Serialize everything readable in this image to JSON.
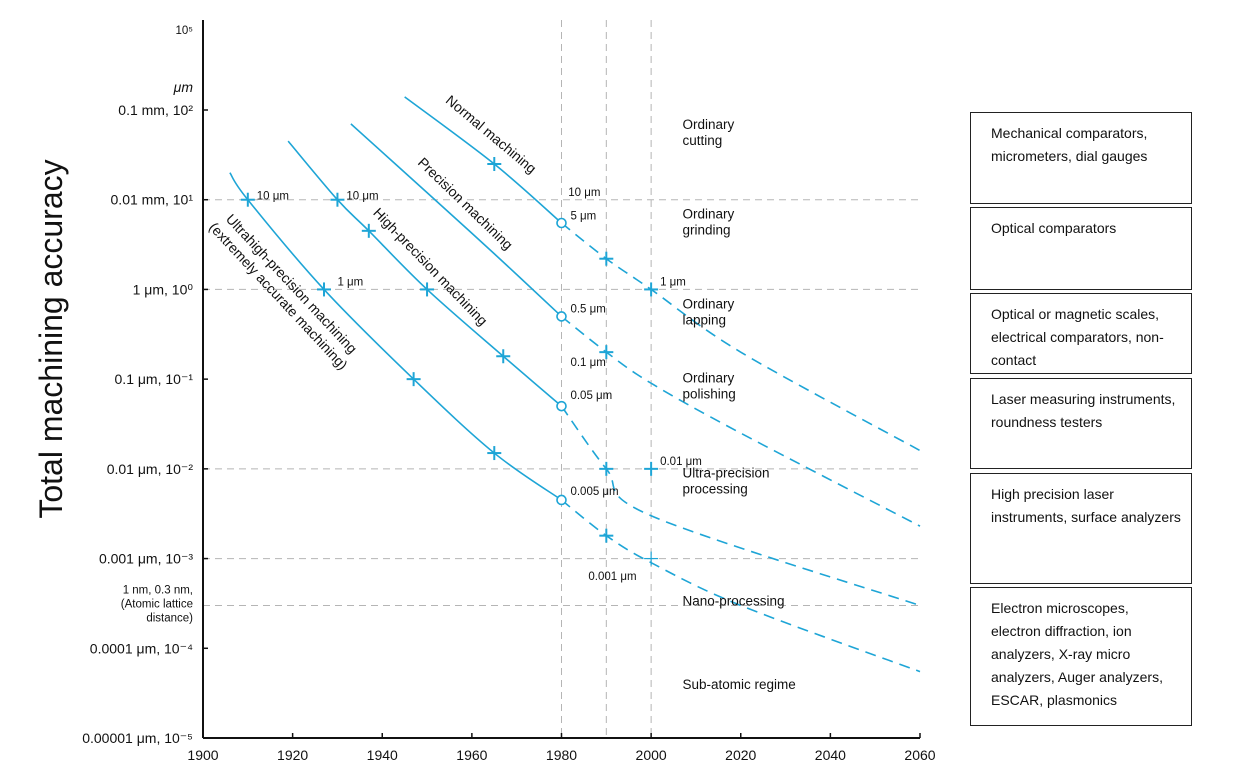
{
  "chart_data": {
    "type": "line",
    "ylabel": "Total machining accuracy",
    "x_axis": {
      "range": [
        1900,
        2060
      ],
      "ticks": [
        1900,
        1920,
        1940,
        1960,
        1980,
        2000,
        2020,
        2040,
        2060
      ]
    },
    "y_axis": {
      "scale": "log",
      "unit_header": "μm",
      "range": [
        1e-05,
        100
      ],
      "top_label": "10⁵",
      "ticks": [
        {
          "value": 100,
          "label": "0.1 mm, 10²"
        },
        {
          "value": 10,
          "label": "0.01 mm, 10¹"
        },
        {
          "value": 1,
          "label": "1 μm, 10⁰"
        },
        {
          "value": 0.1,
          "label": "0.1 μm, 10⁻¹"
        },
        {
          "value": 0.01,
          "label": "0.01 μm, 10⁻²"
        },
        {
          "value": 0.001,
          "label": "0.001 μm, 10⁻³"
        },
        {
          "value": 0.0001,
          "label": "0.0001 μm, 10⁻⁴"
        },
        {
          "value": 1e-05,
          "label": "0.00001 μm, 10⁻⁵"
        }
      ],
      "extra_label": {
        "value": 0.0003,
        "lines": [
          "1 nm, 0.3 nm,",
          "(Atomic lattice",
          "distance)"
        ]
      }
    },
    "gridlines": {
      "horizontal": [
        10,
        1,
        0.01,
        0.001,
        0.0003
      ],
      "vertical": [
        1980,
        1990,
        2000
      ]
    },
    "series": [
      {
        "name": "Normal machining",
        "points": [
          [
            1945,
            140
          ],
          [
            1965,
            25
          ],
          [
            1980,
            5.5
          ],
          [
            1990,
            2.2
          ],
          [
            2000,
            1
          ],
          [
            2020,
            0.2
          ],
          [
            2060,
            0.016
          ]
        ],
        "solid_until": 1980,
        "plus_markers": [
          [
            1965,
            25
          ],
          [
            1990,
            2.2
          ],
          [
            2000,
            1
          ]
        ],
        "circle_marker": [
          1980,
          5.5
        ]
      },
      {
        "name": "Precision machining",
        "points": [
          [
            1933,
            70
          ],
          [
            1950,
            12
          ],
          [
            1965,
            2.5
          ],
          [
            1980,
            0.5
          ],
          [
            1990,
            0.2
          ],
          [
            2000,
            0.09
          ],
          [
            2020,
            0.025
          ],
          [
            2060,
            0.0023
          ]
        ],
        "solid_until": 1980,
        "plus_markers": [
          [
            1990,
            0.2
          ]
        ],
        "circle_marker": [
          1980,
          0.5
        ]
      },
      {
        "name": "High-precision machining",
        "points": [
          [
            1919,
            45
          ],
          [
            1930,
            10
          ],
          [
            1937,
            4.5
          ],
          [
            1950,
            1
          ],
          [
            1967,
            0.18
          ],
          [
            1980,
            0.05
          ],
          [
            1990,
            0.01
          ],
          [
            2000,
            0.003
          ],
          [
            2060,
            0.0003
          ]
        ],
        "solid_until": 1980,
        "plus_markers": [
          [
            1930,
            10
          ],
          [
            1937,
            4.5
          ],
          [
            1950,
            1
          ],
          [
            1967,
            0.18
          ],
          [
            1990,
            0.01
          ]
        ],
        "circle_marker": [
          1980,
          0.05
        ]
      },
      {
        "name": "Ultrahigh-precision machining",
        "subtitle": "(extremely accurate machining)",
        "points": [
          [
            1906,
            20
          ],
          [
            1910,
            10
          ],
          [
            1927,
            1
          ],
          [
            1947,
            0.1
          ],
          [
            1965,
            0.015
          ],
          [
            1980,
            0.0045
          ],
          [
            1990,
            0.0018
          ],
          [
            2000,
            0.0009
          ],
          [
            2020,
            0.0003
          ],
          [
            2060,
            5.5e-05
          ]
        ],
        "solid_until": 1980,
        "plus_markers": [
          [
            1910,
            10
          ],
          [
            1927,
            1
          ],
          [
            1947,
            0.1
          ],
          [
            1965,
            0.015
          ],
          [
            1990,
            0.0018
          ]
        ],
        "circle_marker": [
          1980,
          0.0045
        ]
      }
    ],
    "extra_markers": [
      {
        "point": [
          2000,
          0.01
        ],
        "style": "plus"
      },
      {
        "point": [
          2000,
          0.001
        ],
        "style": "plus-thin"
      }
    ],
    "annotations": [
      {
        "text": "10 μm",
        "at": [
          1912,
          10
        ]
      },
      {
        "text": "10 μm",
        "at": [
          1932,
          10
        ]
      },
      {
        "text": "10 μm",
        "at": [
          1981.5,
          11
        ]
      },
      {
        "text": "5 μm",
        "at": [
          1982,
          6
        ]
      },
      {
        "text": "1 μm",
        "at": [
          1930,
          1.1
        ]
      },
      {
        "text": "1 μm",
        "at": [
          2002,
          1.1
        ]
      },
      {
        "text": "0.5 μm",
        "at": [
          1982,
          0.55
        ]
      },
      {
        "text": "0.1 μm",
        "at": [
          1982,
          0.14
        ]
      },
      {
        "text": "0.05 μm",
        "at": [
          1982,
          0.06
        ]
      },
      {
        "text": "0.01 μm",
        "at": [
          2002,
          0.011
        ]
      },
      {
        "text": "0.005 μm",
        "at": [
          1982,
          0.0051
        ]
      },
      {
        "text": "0.001 μm",
        "at": [
          1986,
          0.00058
        ]
      }
    ],
    "regions": [
      {
        "lines": [
          "Ordinary",
          "cutting"
        ],
        "at": [
          2007,
          50
        ]
      },
      {
        "lines": [
          "Ordinary",
          "grinding"
        ],
        "at": [
          2007,
          5
        ]
      },
      {
        "lines": [
          "Ordinary",
          "lapping"
        ],
        "at": [
          2007,
          0.5
        ]
      },
      {
        "lines": [
          "Ordinary",
          "polishing"
        ],
        "at": [
          2007,
          0.075
        ]
      },
      {
        "lines": [
          "Ultra-precision",
          "processing"
        ],
        "at": [
          2007,
          0.0065
        ]
      },
      {
        "lines": [
          "Nano-processing"
        ],
        "at": [
          2007,
          0.0003
        ]
      },
      {
        "lines": [
          "Sub-atomic regime"
        ],
        "at": [
          2007,
          3.5e-05
        ]
      }
    ],
    "measurement_boxes": [
      "Mechanical comparators, micrometers, dial gauges",
      "Optical comparators",
      "Optical or magnetic scales, electrical comparators, non-contact",
      "Laser measuring instruments, roundness testers",
      "High precision laser instruments, surface analyzers",
      "Electron microscopes, electron diffraction, ion analyzers, X-ray micro analyzers, Auger analyzers, ESCAR, plasmonics"
    ],
    "colors": {
      "curve": "#1ea5d6",
      "axis": "#111111",
      "grid": "#b5b5b5"
    }
  }
}
